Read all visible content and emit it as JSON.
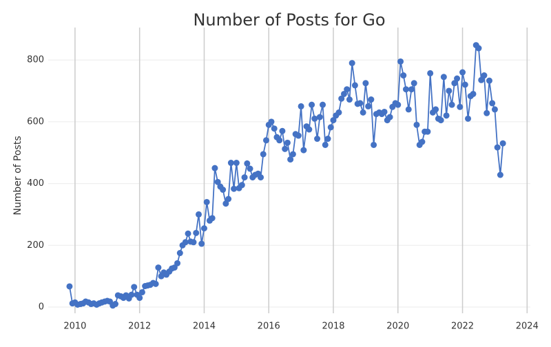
{
  "chart_data": {
    "type": "line",
    "title": "Number of Posts for Go",
    "y_label": "Number of Posts",
    "xlim": [
      2009.17,
      2024.1
    ],
    "xticks": [
      2010,
      2012,
      2014,
      2016,
      2018,
      2020,
      2022,
      2024
    ],
    "ylim": [
      -20,
      905
    ],
    "yticks": [
      0,
      200,
      400,
      600,
      800
    ],
    "grid": true,
    "series": [
      {
        "name": "Posts",
        "color": "#4472c4",
        "x": [
          2009.83,
          2009.92,
          2010.0,
          2010.08,
          2010.17,
          2010.25,
          2010.33,
          2010.42,
          2010.5,
          2010.58,
          2010.67,
          2010.75,
          2010.83,
          2010.92,
          2011.0,
          2011.08,
          2011.17,
          2011.25,
          2011.33,
          2011.42,
          2011.5,
          2011.58,
          2011.67,
          2011.75,
          2011.83,
          2011.92,
          2012.0,
          2012.08,
          2012.17,
          2012.25,
          2012.33,
          2012.42,
          2012.5,
          2012.58,
          2012.67,
          2012.75,
          2012.83,
          2012.92,
          2013.0,
          2013.08,
          2013.17,
          2013.25,
          2013.33,
          2013.42,
          2013.5,
          2013.58,
          2013.67,
          2013.75,
          2013.83,
          2013.92,
          2014.0,
          2014.08,
          2014.17,
          2014.25,
          2014.33,
          2014.42,
          2014.5,
          2014.58,
          2014.67,
          2014.75,
          2014.83,
          2014.92,
          2015.0,
          2015.08,
          2015.17,
          2015.25,
          2015.33,
          2015.42,
          2015.5,
          2015.58,
          2015.67,
          2015.75,
          2015.83,
          2015.92,
          2016.0,
          2016.08,
          2016.17,
          2016.25,
          2016.33,
          2016.42,
          2016.5,
          2016.58,
          2016.67,
          2016.75,
          2016.83,
          2016.92,
          2017.0,
          2017.08,
          2017.17,
          2017.25,
          2017.33,
          2017.42,
          2017.5,
          2017.58,
          2017.67,
          2017.75,
          2017.83,
          2017.92,
          2018.0,
          2018.08,
          2018.17,
          2018.25,
          2018.33,
          2018.42,
          2018.5,
          2018.58,
          2018.67,
          2018.75,
          2018.83,
          2018.92,
          2019.0,
          2019.08,
          2019.17,
          2019.25,
          2019.33,
          2019.42,
          2019.5,
          2019.58,
          2019.67,
          2019.75,
          2019.83,
          2019.92,
          2020.0,
          2020.08,
          2020.17,
          2020.25,
          2020.33,
          2020.42,
          2020.5,
          2020.58,
          2020.67,
          2020.75,
          2020.83,
          2020.92,
          2021.0,
          2021.08,
          2021.17,
          2021.25,
          2021.33,
          2021.42,
          2021.5,
          2021.58,
          2021.67,
          2021.75,
          2021.83,
          2021.92,
          2022.0,
          2022.08,
          2022.17,
          2022.25,
          2022.33,
          2022.42,
          2022.5,
          2022.58,
          2022.67,
          2022.75,
          2022.83,
          2022.92,
          2023.0,
          2023.08,
          2023.17,
          2023.25
        ],
        "values": [
          67,
          12,
          15,
          8,
          10,
          12,
          18,
          15,
          10,
          12,
          8,
          12,
          15,
          18,
          20,
          18,
          5,
          10,
          38,
          35,
          30,
          38,
          28,
          40,
          65,
          40,
          30,
          48,
          68,
          70,
          72,
          78,
          75,
          128,
          100,
          112,
          105,
          115,
          125,
          128,
          142,
          175,
          200,
          210,
          238,
          212,
          210,
          240,
          300,
          205,
          255,
          340,
          280,
          288,
          450,
          405,
          390,
          380,
          335,
          350,
          467,
          383,
          467,
          385,
          395,
          420,
          465,
          448,
          420,
          428,
          432,
          420,
          495,
          540,
          590,
          600,
          578,
          550,
          540,
          570,
          512,
          532,
          478,
          495,
          560,
          555,
          650,
          508,
          585,
          575,
          655,
          610,
          545,
          615,
          655,
          525,
          545,
          582,
          605,
          620,
          630,
          675,
          690,
          705,
          672,
          790,
          718,
          658,
          660,
          630,
          725,
          650,
          672,
          525,
          625,
          630,
          625,
          632,
          605,
          615,
          648,
          660,
          655,
          795,
          750,
          705,
          640,
          705,
          725,
          590,
          525,
          535,
          568,
          568,
          757,
          630,
          640,
          610,
          605,
          745,
          620,
          700,
          655,
          725,
          740,
          648,
          760,
          720,
          610,
          683,
          690,
          848,
          838,
          735,
          750,
          628,
          733,
          660,
          640,
          517,
          428,
          530
        ]
      }
    ]
  }
}
